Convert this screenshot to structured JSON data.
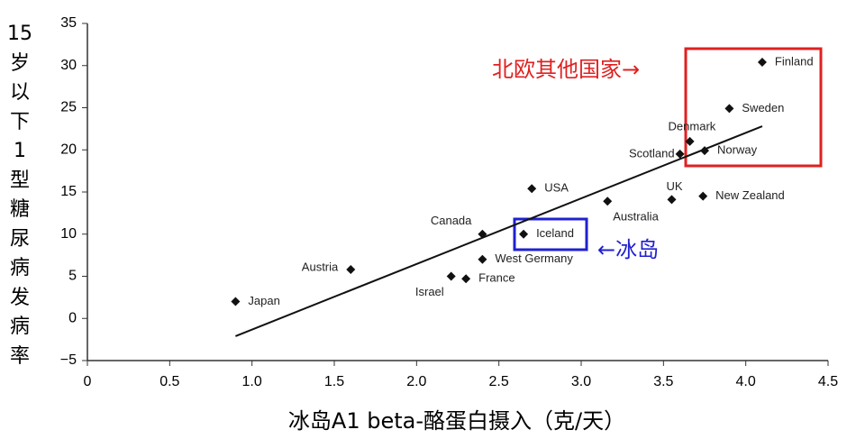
{
  "chart_data": {
    "type": "scatter",
    "y_label": "15岁以下1型糖尿病发病率",
    "x_label": "冰岛A1 beta-酪蛋白摄入（克/天）",
    "series": [
      {
        "color": "#111111",
        "labels": [
          "Japan",
          "Austria",
          "Israel",
          "France",
          "West Germany",
          "Canada",
          "Iceland",
          "USA",
          "Australia",
          "UK",
          "New Zealand",
          "Scotland",
          "Denmark",
          "Norway",
          "Sweden",
          "Finland"
        ],
        "x": [
          0.9,
          1.6,
          2.21,
          2.3,
          2.4,
          2.4,
          2.65,
          2.7,
          3.16,
          3.55,
          3.74,
          3.6,
          3.66,
          3.75,
          3.9,
          4.1
        ],
        "values": [
          2,
          5.8,
          5,
          4.7,
          7,
          10,
          10,
          15.4,
          13.9,
          14.1,
          14.5,
          19.5,
          21,
          19.9,
          24.9,
          30.4
        ]
      }
    ],
    "trendline": {
      "x": [
        0.9,
        4.1
      ],
      "y": [
        -2.1,
        22.8
      ]
    },
    "annotations": [
      {
        "text": "北欧其他国家→",
        "color": "#e02020"
      },
      {
        "text": "←冰岛",
        "color": "#2020d0"
      }
    ],
    "xlim": [
      0,
      4.5
    ],
    "xticks": [
      0,
      0.5,
      {
        "value": 1,
        "label": "1.0"
      },
      1.5,
      {
        "value": 2,
        "label": "2.0"
      },
      2.5,
      {
        "value": 3,
        "label": "3.0"
      },
      3.5,
      {
        "value": 4,
        "label": "4.0"
      },
      4.5
    ],
    "ylim": [
      -5,
      35
    ],
    "yticks": [
      {
        "value": -5,
        "label": "−5"
      },
      0,
      5,
      10,
      15,
      20,
      25,
      30,
      35
    ]
  }
}
